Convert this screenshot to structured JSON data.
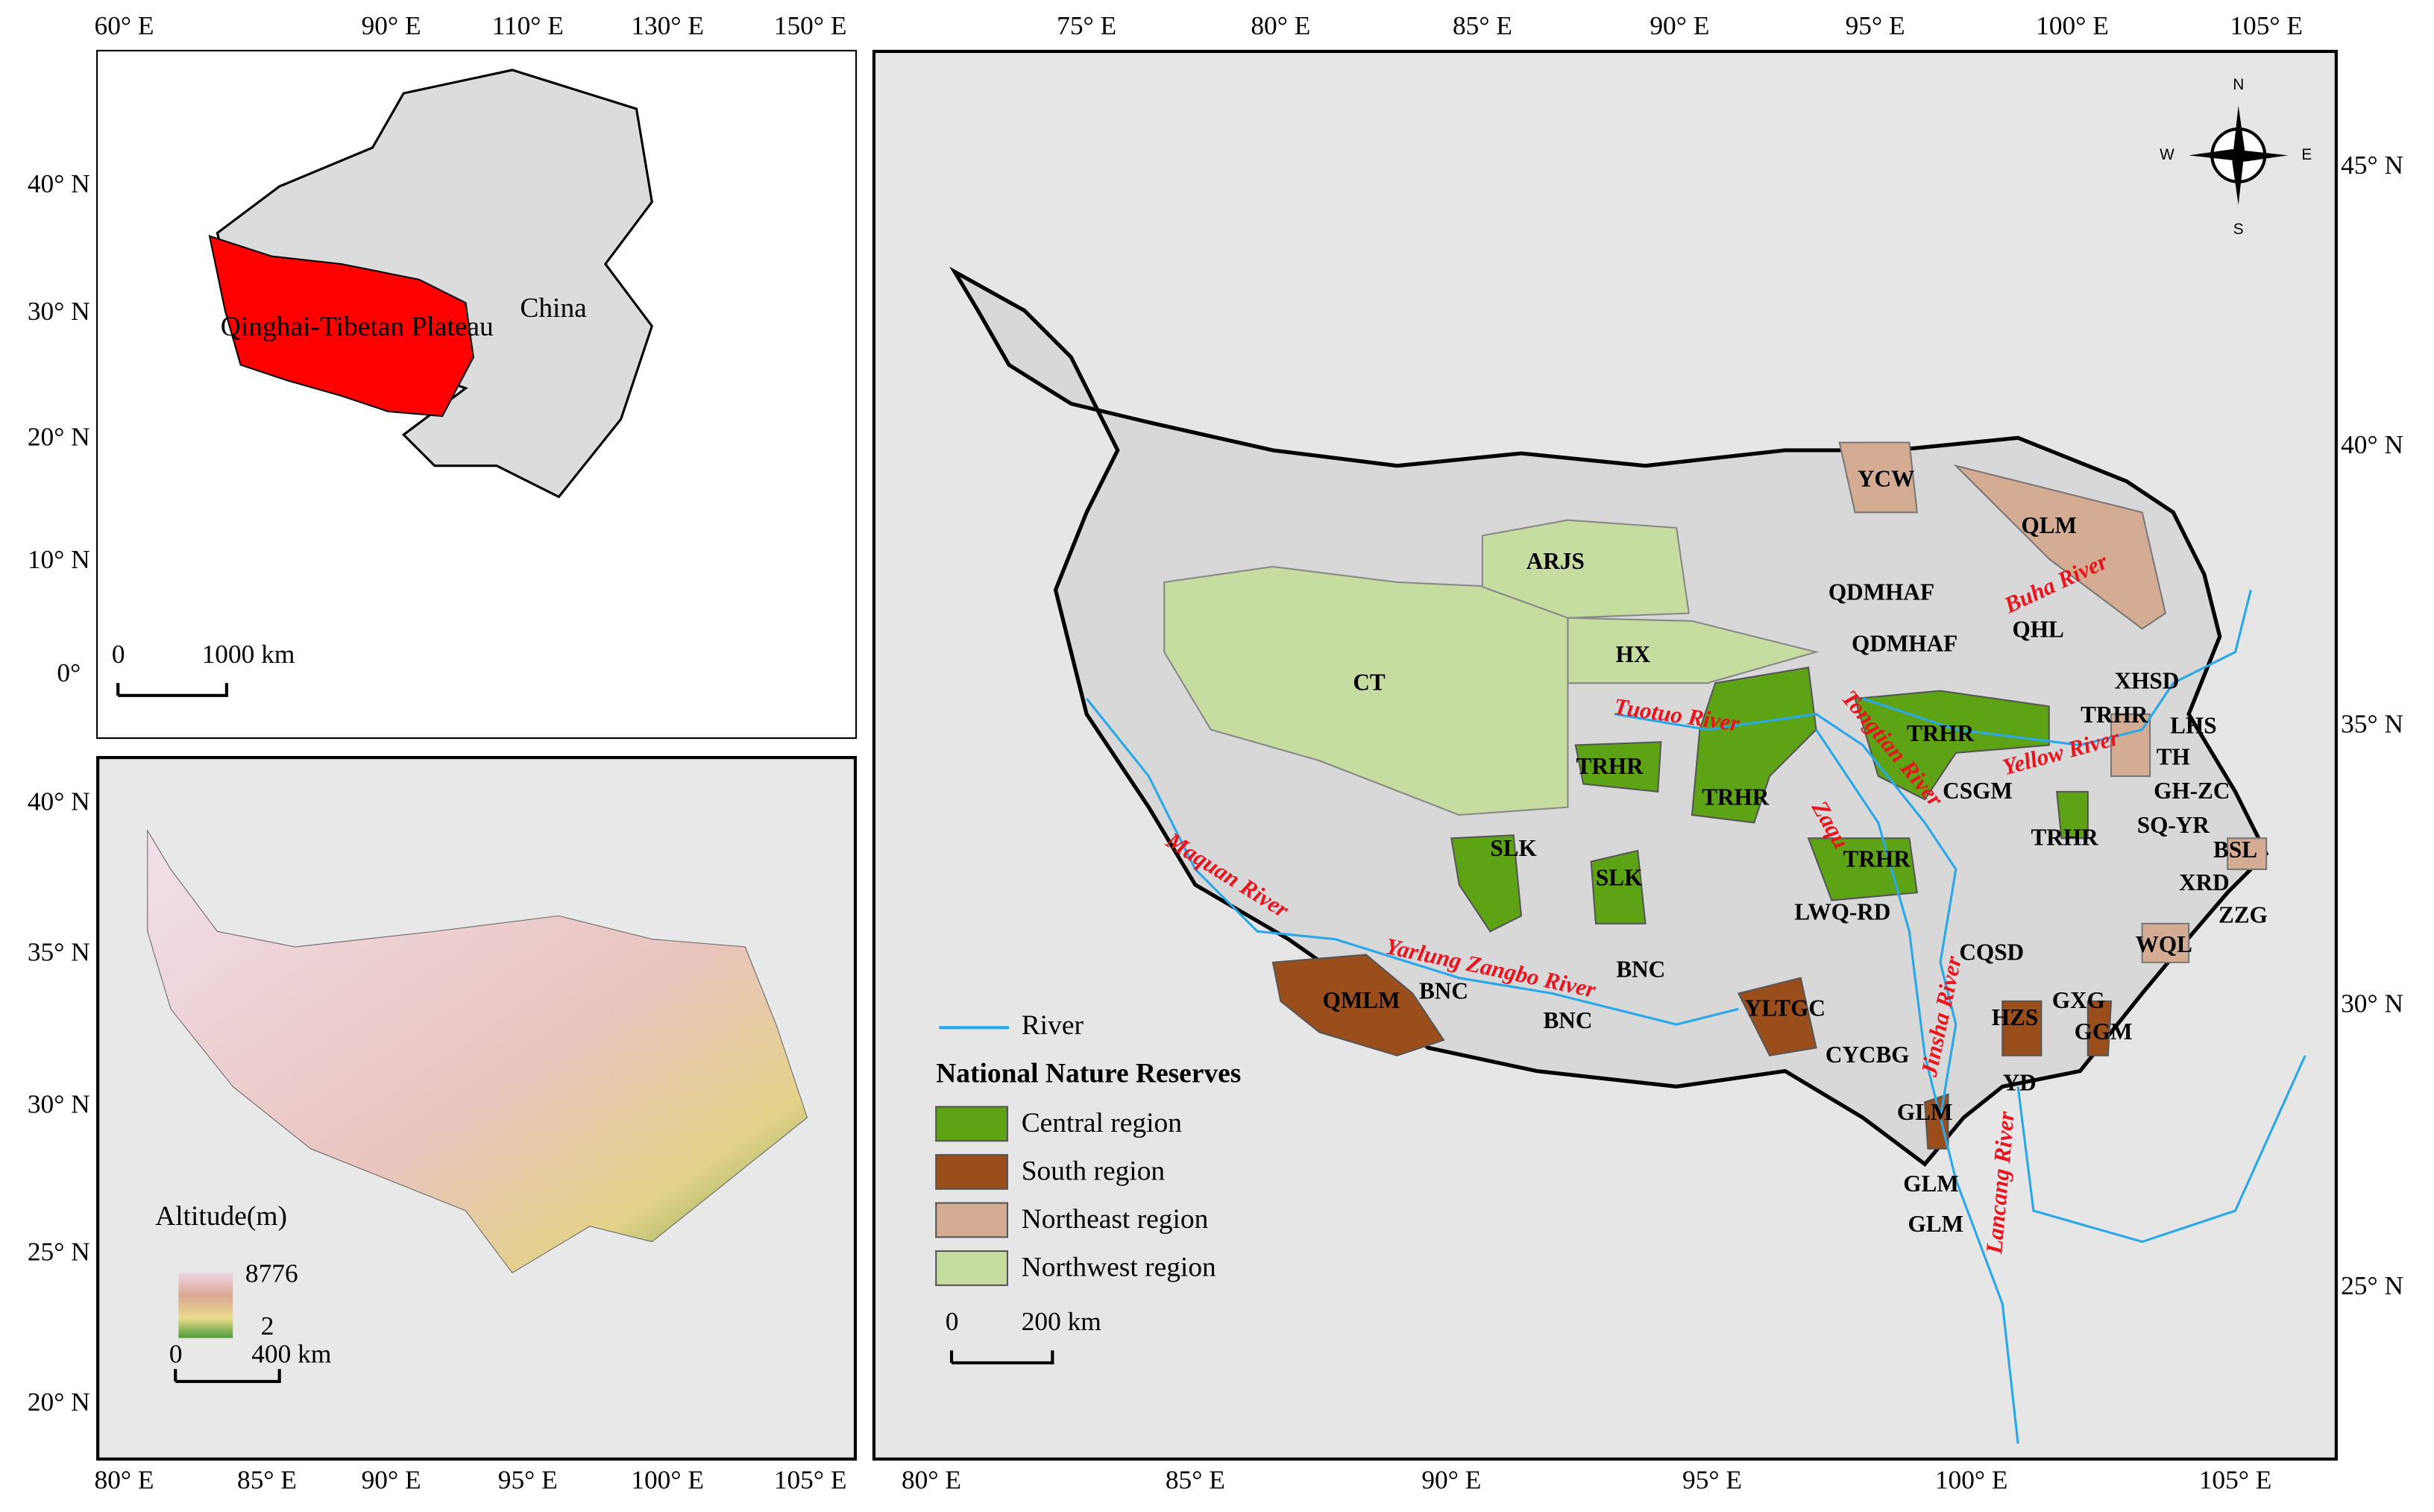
{
  "inset_asia": {
    "top_ticks": [
      "60° E",
      "90° E",
      "110° E",
      "130° E",
      "150° E"
    ],
    "left_ticks": [
      "40° N",
      "30° N",
      "20° N",
      "10° N",
      "0°"
    ],
    "labels": {
      "country": "China",
      "plateau": "Qinghai-Tibetan Plateau"
    },
    "scale_bar": [
      "0",
      "1000 km"
    ]
  },
  "altitude_map": {
    "bottom_ticks": [
      "80° E",
      "85° E",
      "90° E",
      "95° E",
      "100° E",
      "105° E"
    ],
    "left_ticks": [
      "40° N",
      "35° N",
      "30° N",
      "25° N",
      "20° N"
    ],
    "legend_title": "Altitude(m)",
    "legend_max": "8776",
    "legend_min": "2",
    "scale_bar": [
      "0",
      "400 km"
    ]
  },
  "main_map": {
    "top_ticks": [
      "75° E",
      "80° E",
      "85° E",
      "90° E",
      "95° E",
      "100° E",
      "105° E"
    ],
    "bottom_ticks": [
      "80° E",
      "85° E",
      "90° E",
      "95° E",
      "100° E",
      "105° E"
    ],
    "right_ticks": [
      "45° N",
      "40° N",
      "35° N",
      "30° N",
      "25° N"
    ],
    "compass": [
      "N",
      "S",
      "E",
      "W"
    ],
    "reserves": [
      "YCW",
      "QLM",
      "ARJS",
      "QDMHAF",
      "QDMHAF",
      "QHL",
      "HX",
      "CT",
      "XHSD",
      "TRHR",
      "LHS",
      "TRHR",
      "TH",
      "TRHR",
      "CSGM",
      "GH-ZC",
      "TRHR",
      "TRHR",
      "SQ-YR",
      "SLK",
      "TRHR",
      "BSL",
      "SLK",
      "XRD",
      "LWQ-RD",
      "ZZG",
      "CQSD",
      "WQL",
      "BNC",
      "BNC",
      "QMLM",
      "GXG",
      "YLTGC",
      "HZS",
      "BNC",
      "GGM",
      "CYCBG",
      "YD",
      "GLM",
      "GLM",
      "GLM"
    ],
    "rivers": [
      "Buha River",
      "Tuotuo River",
      "Tongtian River",
      "Yellow River",
      "Zaqu",
      "Maquan River",
      "Yarlung Zangbo River",
      "Jinsha River",
      "Lancang River"
    ],
    "legend": {
      "river": "River",
      "title": "National Nature Reserves",
      "items": [
        {
          "name": "Central region",
          "color": "#5ea315"
        },
        {
          "name": "South region",
          "color": "#9a4e1c"
        },
        {
          "name": "Northeast region",
          "color": "#d4ac94"
        },
        {
          "name": "Northwest region",
          "color": "#c6dca0"
        }
      ]
    },
    "scale_bar": [
      "0",
      "200 km"
    ]
  }
}
